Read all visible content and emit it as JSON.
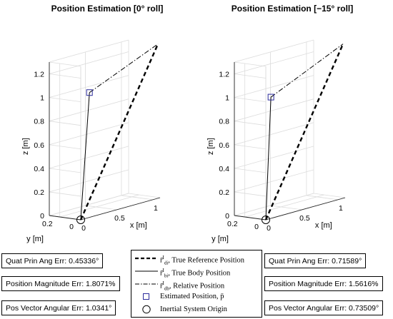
{
  "chart_data": [
    {
      "type": "line3d",
      "title": "Position Estimation [0° roll]",
      "xlabel": "x [m]",
      "ylabel": "y [m]",
      "zlabel": "z [m]",
      "x_ticks": [
        "0",
        "0.5",
        "1"
      ],
      "y_ticks": [
        "0",
        "0.2"
      ],
      "z_ticks": [
        "0",
        "0.2",
        "0.4",
        "0.6",
        "0.8",
        "1",
        "1.2"
      ],
      "xlim": [
        0,
        1.1
      ],
      "ylim": [
        0,
        0.3
      ],
      "zlim": [
        0,
        1.3
      ],
      "grid": true,
      "origin": {
        "x": 0,
        "y": 0,
        "z": 0
      },
      "estimated_position": {
        "x": 0.15,
        "y": 0.02,
        "z": 1.05
      },
      "series": [
        {
          "name": "True Reference Position",
          "style": "dashed",
          "points": [
            {
              "x": 0,
              "y": 0,
              "z": 0
            },
            {
              "x": 1.1,
              "y": 0.02,
              "z": 1.3
            }
          ]
        },
        {
          "name": "True Body Position",
          "style": "solid",
          "points": [
            {
              "x": 0,
              "y": 0,
              "z": 0
            },
            {
              "x": 0.15,
              "y": 0.02,
              "z": 1.05
            }
          ]
        },
        {
          "name": "Relative Position",
          "style": "dashdot",
          "points": [
            {
              "x": 0.15,
              "y": 0.02,
              "z": 1.05
            },
            {
              "x": 1.1,
              "y": 0.02,
              "z": 1.3
            }
          ]
        }
      ]
    },
    {
      "type": "line3d",
      "title": "Position Estimation [−15° roll]",
      "xlabel": "x [m]",
      "ylabel": "y [m]",
      "zlabel": "z [m]",
      "x_ticks": [
        "0",
        "0.5",
        "1"
      ],
      "y_ticks": [
        "0",
        "0.2"
      ],
      "z_ticks": [
        "0",
        "0.2",
        "0.4",
        "0.6",
        "0.8",
        "1",
        "1.2"
      ],
      "xlim": [
        0,
        1.1
      ],
      "ylim": [
        0,
        0.3
      ],
      "zlim": [
        0,
        1.3
      ],
      "grid": true,
      "origin": {
        "x": 0,
        "y": 0,
        "z": 0
      },
      "estimated_position": {
        "x": 0.1,
        "y": 0.02,
        "z": 1.02
      },
      "series": [
        {
          "name": "True Reference Position",
          "style": "dashed",
          "points": [
            {
              "x": 0,
              "y": 0,
              "z": 0
            },
            {
              "x": 1.1,
              "y": 0.02,
              "z": 1.3
            }
          ]
        },
        {
          "name": "True Body Position",
          "style": "solid",
          "points": [
            {
              "x": 0,
              "y": 0,
              "z": 0
            },
            {
              "x": 0.1,
              "y": 0.02,
              "z": 1.02
            }
          ]
        },
        {
          "name": "Relative Position",
          "style": "dashdot",
          "points": [
            {
              "x": 0.1,
              "y": 0.02,
              "z": 1.02
            },
            {
              "x": 1.1,
              "y": 0.02,
              "z": 1.3
            }
          ]
        }
      ]
    }
  ],
  "legend": {
    "entries": [
      {
        "symbol": "r̄",
        "sup": "I",
        "sub": "di",
        "text": ", True Reference Position",
        "style": "dashed"
      },
      {
        "symbol": "r̄",
        "sup": "I",
        "sub": "bi",
        "text": ", True Body Position",
        "style": "solid"
      },
      {
        "symbol": "r̄",
        "sup": "I",
        "sub": "db",
        "text": ", Relative Position",
        "style": "dashdot"
      },
      {
        "text": "Estimated Position, p̄",
        "style": "square"
      },
      {
        "text": "Inertial System Origin",
        "style": "circle"
      }
    ]
  },
  "left_errors": {
    "quat": "Quat Prin Ang Err: 0.45336°",
    "mag": "Position Magnitude Err: 1.8071%",
    "vec": "Pos Vector Angular Err: 1.0341°"
  },
  "right_errors": {
    "quat": "Quat Prin Ang Err: 0.71589°",
    "mag": "Position Magnitude Err: 1.5616%",
    "vec": "Pos Vector Angular Err: 0.73509°"
  },
  "colors": {
    "marker": "#2b2b9b",
    "grid": "#dcdcdc"
  }
}
